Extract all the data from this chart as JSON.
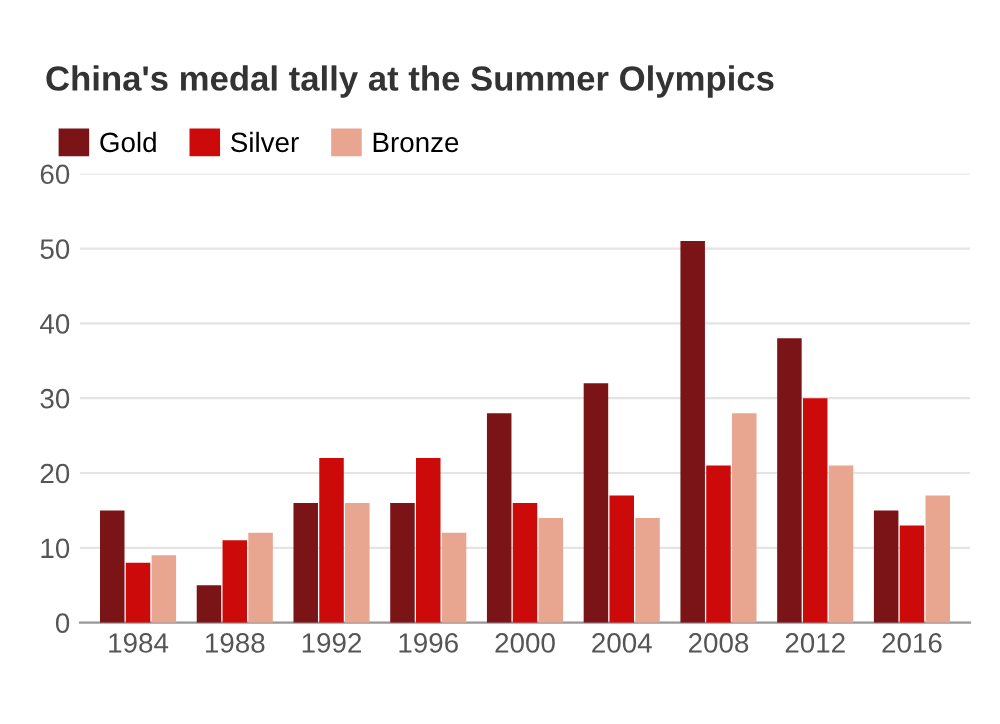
{
  "chart_data": {
    "type": "bar",
    "title": "China's medal tally at the Summer Olympics",
    "categories": [
      "1984",
      "1988",
      "1992",
      "1996",
      "2000",
      "2004",
      "2008",
      "2012",
      "2016"
    ],
    "series": [
      {
        "name": "Gold",
        "color": "#7b1416",
        "values": [
          15,
          5,
          16,
          16,
          28,
          32,
          51,
          38,
          15
        ]
      },
      {
        "name": "Silver",
        "color": "#cc0a0a",
        "values": [
          8,
          11,
          22,
          22,
          16,
          17,
          21,
          30,
          13
        ]
      },
      {
        "name": "Bronze",
        "color": "#e8a690",
        "values": [
          9,
          12,
          16,
          12,
          14,
          14,
          28,
          21,
          17
        ]
      }
    ],
    "ylim": [
      0,
      60
    ],
    "yticks": [
      0,
      10,
      20,
      30,
      40,
      50,
      60
    ],
    "grid": "y",
    "legend": "top left"
  }
}
